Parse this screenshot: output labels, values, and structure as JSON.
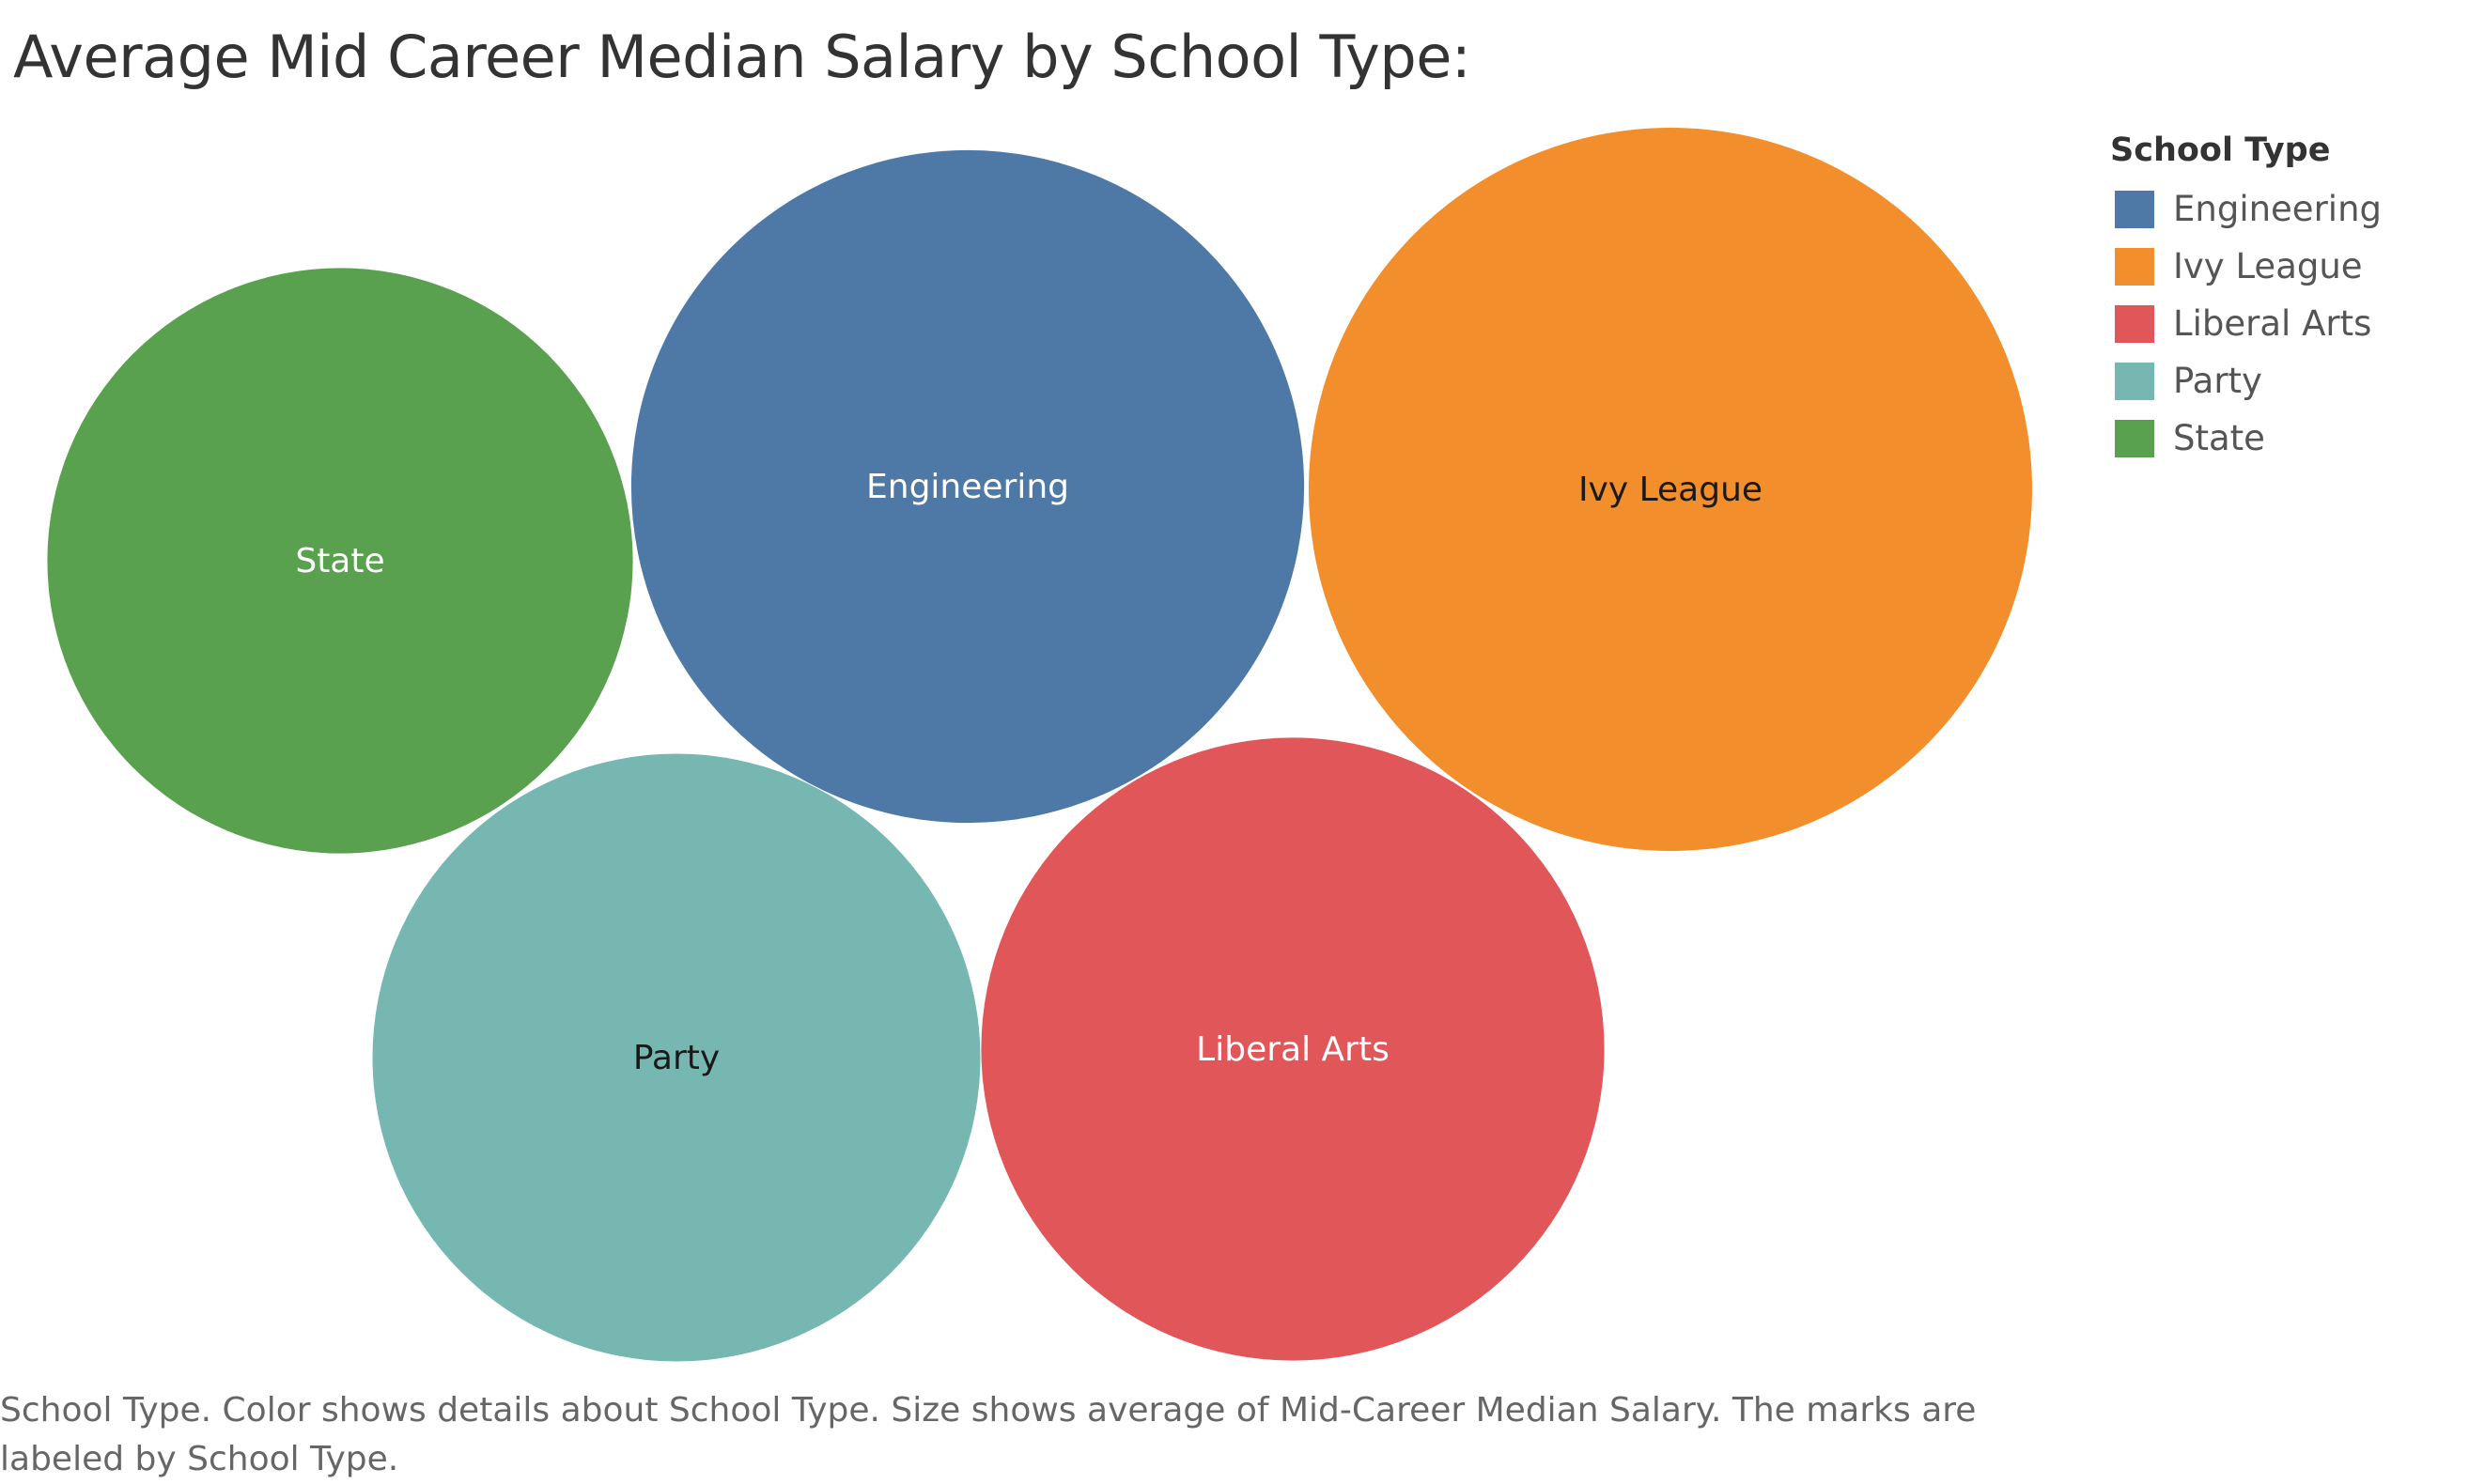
{
  "title": "Average Mid Career Median Salary by School Type:",
  "legend": {
    "title": "School Type",
    "items": [
      {
        "label": "Engineering",
        "color": "#4e79a7"
      },
      {
        "label": "Ivy League",
        "color": "#f28e2b"
      },
      {
        "label": "Liberal Arts",
        "color": "#e15759"
      },
      {
        "label": "Party",
        "color": "#76b7b2"
      },
      {
        "label": "State",
        "color": "#59a14f"
      }
    ]
  },
  "caption": "School Type.  Color shows details about School Type.  Size shows average of Mid-Career Median Salary.  The marks are labeled by School Type.",
  "chart_data": {
    "type": "bubble",
    "title": "Average Mid Career Median Salary by School Type:",
    "size_measure": "average of Mid-Career Median Salary",
    "color_dimension": "School Type",
    "values_estimated_relative_to_ivy_league": true,
    "series": [
      {
        "name": "Ivy League",
        "value": 120000,
        "color": "#f28e2b",
        "label_color": "#1a1a1a"
      },
      {
        "name": "Engineering",
        "value": 103800,
        "color": "#4e79a7",
        "label_color": "#ffffff"
      },
      {
        "name": "Liberal Arts",
        "value": 89000,
        "color": "#e15759",
        "label_color": "#ffffff"
      },
      {
        "name": "Party",
        "value": 84700,
        "color": "#76b7b2",
        "label_color": "#1a1a1a"
      },
      {
        "name": "State",
        "value": 78600,
        "color": "#59a14f",
        "label_color": "#ffffff"
      }
    ]
  }
}
